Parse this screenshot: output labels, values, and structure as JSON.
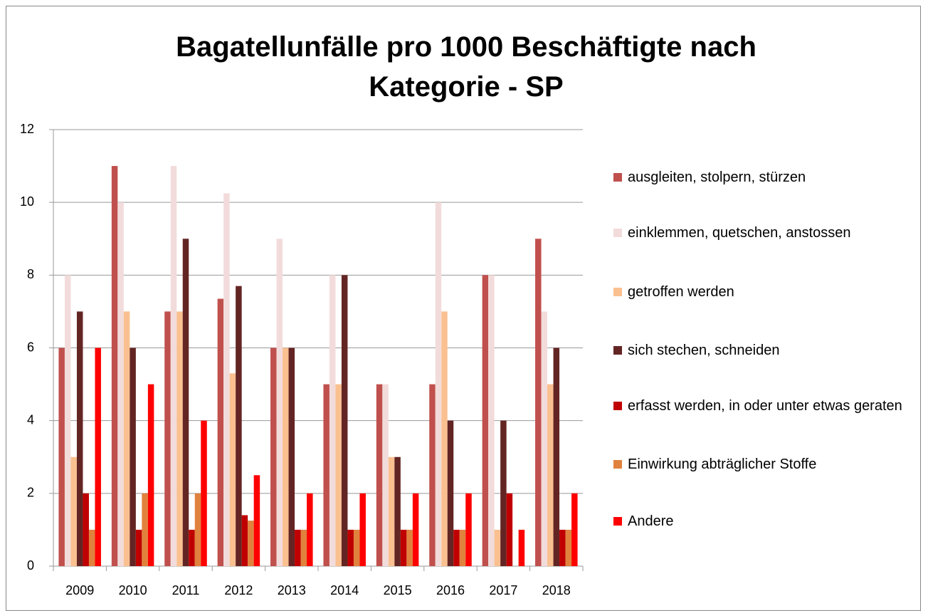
{
  "chart_data": {
    "type": "bar",
    "title": "Bagatellunfälle pro 1000 Beschäftigte nach Kategorie - SP",
    "categories": [
      "2009",
      "2010",
      "2011",
      "2012",
      "2013",
      "2014",
      "2015",
      "2016",
      "2017",
      "2018"
    ],
    "series": [
      {
        "name": "ausgleiten, stolpern, stürzen",
        "color": "#c0504d",
        "values": [
          6,
          11,
          7,
          7.35,
          6,
          5,
          5,
          5,
          8,
          9
        ]
      },
      {
        "name": "einklemmen, quetschen, anstossen",
        "color": "#f2dcdb",
        "values": [
          8,
          10,
          11,
          10.25,
          9,
          8,
          5,
          10,
          8,
          7
        ]
      },
      {
        "name": "getroffen werden",
        "color": "#fac090",
        "values": [
          3,
          7,
          7,
          5.3,
          6,
          5,
          3,
          7,
          1,
          5
        ]
      },
      {
        "name": "sich stechen, schneiden",
        "color": "#632523",
        "values": [
          7,
          6,
          9,
          7.7,
          6,
          8,
          3,
          4,
          4,
          6
        ]
      },
      {
        "name": "erfasst werden, in oder unter etwas geraten",
        "color": "#c00000",
        "values": [
          2,
          1,
          1,
          1.4,
          1,
          1,
          1,
          1,
          2,
          1
        ]
      },
      {
        "name": "Einwirkung abträglicher Stoffe",
        "color": "#e0823d",
        "values": [
          1,
          2,
          2,
          1.25,
          1,
          1,
          1,
          1,
          0,
          1
        ]
      },
      {
        "name": "Andere",
        "color": "#ff0000",
        "values": [
          6,
          5,
          4,
          2.5,
          2,
          2,
          2,
          2,
          1,
          2
        ]
      }
    ],
    "ylim": [
      0,
      12
    ],
    "yticks": [
      0,
      2,
      4,
      6,
      8,
      10,
      12
    ],
    "grid": true,
    "legend": "right"
  }
}
